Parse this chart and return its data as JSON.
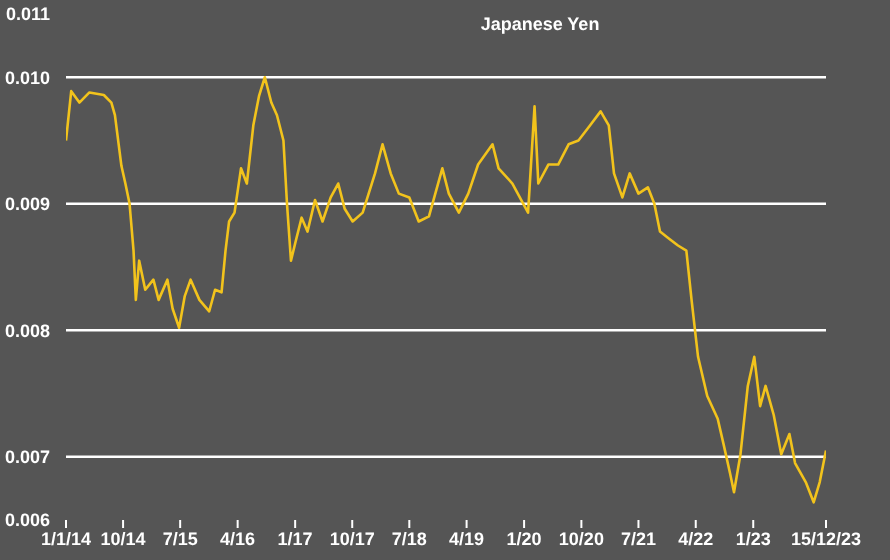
{
  "chart_data": {
    "type": "line",
    "title": "Japanese Yen",
    "x": [
      "2014-01-01",
      "2014-01-26",
      "2014-03-06",
      "2014-04-23",
      "2014-07-01",
      "2014-08-06",
      "2014-08-23",
      "2014-09-23",
      "2014-10-12",
      "2014-11-01",
      "2014-11-20",
      "2014-12-01",
      "2014-12-17",
      "2015-01-15",
      "2015-02-23",
      "2015-03-20",
      "2015-05-01",
      "2015-05-26",
      "2015-06-26",
      "2015-07-23",
      "2015-08-20",
      "2015-10-01",
      "2015-11-17",
      "2015-12-15",
      "2016-01-15",
      "2016-02-03",
      "2016-02-20",
      "2016-03-17",
      "2016-04-17",
      "2016-05-15",
      "2016-06-15",
      "2016-07-12",
      "2016-08-09",
      "2016-09-09",
      "2016-10-06",
      "2016-11-06",
      "2016-11-23",
      "2016-12-12",
      "2017-01-03",
      "2017-02-01",
      "2017-03-01",
      "2017-04-06",
      "2017-05-12",
      "2017-06-20",
      "2017-07-26",
      "2017-08-26",
      "2017-10-03",
      "2017-11-20",
      "2018-01-18",
      "2018-02-23",
      "2018-04-03",
      "2018-05-12",
      "2018-07-01",
      "2018-08-15",
      "2018-10-03",
      "2018-12-06",
      "2019-01-06",
      "2019-02-23",
      "2019-04-09",
      "2019-05-26",
      "2019-08-03",
      "2019-09-01",
      "2019-11-06",
      "2020-01-20",
      "2020-02-20",
      "2020-03-09",
      "2020-04-26",
      "2020-06-12",
      "2020-08-01",
      "2020-09-17",
      "2020-11-12",
      "2021-01-01",
      "2021-02-09",
      "2021-03-06",
      "2021-04-15",
      "2021-05-20",
      "2021-07-01",
      "2021-08-15",
      "2021-09-15",
      "2021-10-12",
      "2021-11-20",
      "2022-01-06",
      "2022-02-15",
      "2022-03-12",
      "2022-04-12",
      "2022-05-26",
      "2022-07-15",
      "2022-08-12",
      "2022-09-12",
      "2022-10-01",
      "2022-11-01",
      "2022-12-06",
      "2023-01-06",
      "2023-02-03",
      "2023-03-01",
      "2023-04-09",
      "2023-05-15",
      "2023-06-23",
      "2023-07-20",
      "2023-09-09",
      "2023-10-17",
      "2023-11-15",
      "2023-12-15"
    ],
    "series": [
      {
        "color": "#f2c31c",
        "values": [
          0.0095,
          0.00989,
          0.0098,
          0.00988,
          0.00986,
          0.0098,
          0.0097,
          0.0093,
          0.00916,
          0.009,
          0.00863,
          0.00824,
          0.00855,
          0.00832,
          0.0084,
          0.00824,
          0.0084,
          0.00817,
          0.00802,
          0.00827,
          0.0084,
          0.00824,
          0.00815,
          0.00832,
          0.0083,
          0.00863,
          0.00886,
          0.00893,
          0.00928,
          0.00916,
          0.00962,
          0.00985,
          0.01,
          0.0098,
          0.0097,
          0.0095,
          0.009,
          0.00855,
          0.0087,
          0.00889,
          0.00878,
          0.00903,
          0.00886,
          0.00905,
          0.00916,
          0.00896,
          0.00886,
          0.00893,
          0.00924,
          0.00947,
          0.00924,
          0.00908,
          0.00905,
          0.00886,
          0.0089,
          0.00928,
          0.00908,
          0.00893,
          0.00908,
          0.00931,
          0.00947,
          0.00928,
          0.00916,
          0.00893,
          0.00977,
          0.00916,
          0.00931,
          0.00931,
          0.00947,
          0.0095,
          0.00962,
          0.00973,
          0.00962,
          0.00924,
          0.00905,
          0.00924,
          0.00908,
          0.00913,
          0.009,
          0.00878,
          0.00873,
          0.00867,
          0.00863,
          0.00824,
          0.00779,
          0.00748,
          0.0073,
          0.0071,
          0.00687,
          0.00672,
          0.00702,
          0.00756,
          0.00779,
          0.0074,
          0.00756,
          0.00733,
          0.00702,
          0.00718,
          0.00695,
          0.0068,
          0.00664,
          0.0068,
          0.00705
        ]
      }
    ],
    "xlim": [
      "2014-01-01",
      "2023-12-15"
    ],
    "xticks": [
      {
        "value": "2014-01-01",
        "label": "1/1/14"
      },
      {
        "value": "2014-10-01",
        "label": "10/14"
      },
      {
        "value": "2015-07-01",
        "label": "7/15"
      },
      {
        "value": "2016-04-01",
        "label": "4/16"
      },
      {
        "value": "2017-01-01",
        "label": "1/17"
      },
      {
        "value": "2017-10-01",
        "label": "10/17"
      },
      {
        "value": "2018-07-01",
        "label": "7/18"
      },
      {
        "value": "2019-04-01",
        "label": "4/19"
      },
      {
        "value": "2020-01-01",
        "label": "1/20"
      },
      {
        "value": "2020-10-01",
        "label": "10/20"
      },
      {
        "value": "2021-07-01",
        "label": "7/21"
      },
      {
        "value": "2022-04-01",
        "label": "4/22"
      },
      {
        "value": "2023-01-01",
        "label": "1/23"
      },
      {
        "value": "2023-12-15",
        "label": "15/12/23"
      }
    ],
    "ylim": [
      0.0065,
      0.0105
    ],
    "yticks": [
      {
        "value": 0.0065,
        "label": "0.006"
      },
      0.007,
      0.008,
      0.009,
      {
        "value": 0.01,
        "label": "0.010"
      },
      {
        "value": 0.0105,
        "label": "0.011"
      }
    ],
    "grid": "y",
    "legend": false,
    "marker": "none",
    "line_style": "solid"
  }
}
